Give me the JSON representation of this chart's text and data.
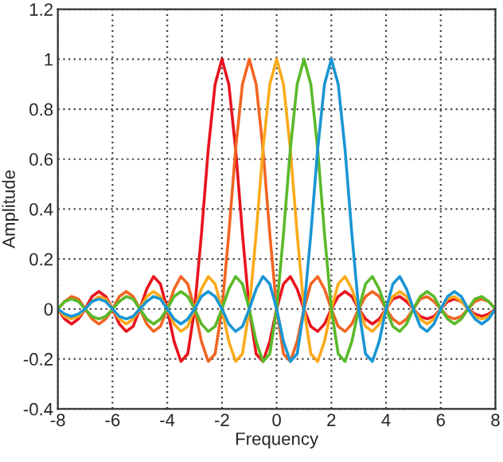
{
  "chart_data": {
    "type": "line",
    "xlabel": "Frequency",
    "ylabel": "Amplitude",
    "x": [
      -8,
      -7.75,
      -7.5,
      -7.25,
      -7,
      -6.75,
      -6.5,
      -6.25,
      -6,
      -5.75,
      -5.5,
      -5.25,
      -5,
      -4.75,
      -4.5,
      -4.25,
      -4,
      -3.75,
      -3.5,
      -3.25,
      -3,
      -2.75,
      -2.5,
      -2.25,
      -2,
      -1.75,
      -1.5,
      -1.25,
      -1,
      -0.75,
      -0.5,
      -0.25,
      0,
      0.25,
      0.5,
      0.75,
      1,
      1.25,
      1.5,
      1.75,
      2,
      2.25,
      2.5,
      2.75,
      3,
      3.25,
      3.5,
      3.75,
      4,
      4.25,
      4.5,
      4.75,
      5,
      5.25,
      5.5,
      5.75,
      6,
      6.25,
      6.5,
      6.75,
      7,
      7.25,
      7.5,
      7.75,
      8
    ],
    "series": [
      {
        "color": "#e8141e",
        "values": [
          0,
          -0.04,
          -0.06,
          -0.04,
          0,
          0.05,
          0.07,
          0.05,
          0,
          -0.06,
          -0.09,
          -0.07,
          0,
          0.08,
          0.13,
          0.1,
          0,
          -0.13,
          -0.21,
          -0.18,
          0,
          0.3,
          0.64,
          0.9,
          1,
          0.9,
          0.64,
          0.3,
          0,
          -0.18,
          -0.21,
          -0.13,
          0,
          0.1,
          0.13,
          0.08,
          0,
          -0.07,
          -0.09,
          -0.06,
          0,
          0.05,
          0.07,
          0.05,
          0,
          -0.04,
          -0.06,
          -0.04,
          0,
          0.04,
          0.05,
          0.03,
          0,
          -0.03,
          -0.04,
          -0.03,
          0,
          0.03,
          0.04,
          0.03,
          0,
          -0.02,
          -0.03,
          -0.02,
          0
        ]
      },
      {
        "color": "#f26522",
        "values": [
          0,
          0.03,
          0.05,
          0.04,
          0,
          -0.04,
          -0.06,
          -0.04,
          0,
          0.05,
          0.07,
          0.05,
          0,
          -0.06,
          -0.09,
          -0.07,
          0,
          0.08,
          0.13,
          0.1,
          0,
          -0.13,
          -0.21,
          -0.18,
          0,
          0.3,
          0.64,
          0.9,
          1,
          0.9,
          0.64,
          0.3,
          0,
          -0.18,
          -0.21,
          -0.13,
          0,
          0.1,
          0.13,
          0.08,
          0,
          -0.07,
          -0.09,
          -0.06,
          0,
          0.05,
          0.07,
          0.05,
          0,
          -0.04,
          -0.06,
          -0.04,
          0,
          0.04,
          0.05,
          0.03,
          0,
          -0.03,
          -0.04,
          -0.03,
          0,
          0.03,
          0.04,
          0.03,
          0
        ]
      },
      {
        "color": "#fbaa1a",
        "values": [
          0,
          -0.03,
          -0.04,
          -0.03,
          0,
          0.03,
          0.05,
          0.04,
          0,
          -0.04,
          -0.06,
          -0.04,
          0,
          0.05,
          0.07,
          0.05,
          0,
          -0.06,
          -0.09,
          -0.07,
          0,
          0.08,
          0.13,
          0.1,
          0,
          -0.13,
          -0.21,
          -0.18,
          0,
          0.3,
          0.64,
          0.9,
          1,
          0.9,
          0.64,
          0.3,
          0,
          -0.18,
          -0.21,
          -0.13,
          0,
          0.1,
          0.13,
          0.08,
          0,
          -0.07,
          -0.09,
          -0.06,
          0,
          0.05,
          0.07,
          0.05,
          0,
          -0.04,
          -0.06,
          -0.04,
          0,
          0.04,
          0.05,
          0.03,
          0,
          -0.03,
          -0.04,
          -0.03,
          0
        ]
      },
      {
        "color": "#5ab92a",
        "values": [
          0,
          0.03,
          0.04,
          0.03,
          0,
          -0.03,
          -0.04,
          -0.03,
          0,
          0.03,
          0.05,
          0.04,
          0,
          -0.04,
          -0.06,
          -0.04,
          0,
          0.05,
          0.07,
          0.05,
          0,
          -0.06,
          -0.09,
          -0.07,
          0,
          0.08,
          0.13,
          0.1,
          0,
          -0.13,
          -0.21,
          -0.18,
          0,
          0.3,
          0.64,
          0.9,
          1,
          0.9,
          0.64,
          0.3,
          0,
          -0.18,
          -0.21,
          -0.13,
          0,
          0.1,
          0.13,
          0.08,
          0,
          -0.07,
          -0.09,
          -0.06,
          0,
          0.05,
          0.07,
          0.05,
          0,
          -0.04,
          -0.06,
          -0.04,
          0,
          0.04,
          0.05,
          0.03,
          0
        ]
      },
      {
        "color": "#1a96d4",
        "values": [
          0,
          -0.02,
          -0.03,
          -0.02,
          0,
          0.03,
          0.04,
          0.03,
          0,
          -0.03,
          -0.04,
          -0.03,
          0,
          0.03,
          0.05,
          0.04,
          0,
          -0.04,
          -0.06,
          -0.04,
          0,
          0.05,
          0.07,
          0.05,
          0,
          -0.06,
          -0.09,
          -0.07,
          0,
          0.08,
          0.13,
          0.1,
          0,
          -0.13,
          -0.21,
          -0.18,
          0,
          0.3,
          0.64,
          0.9,
          1,
          0.9,
          0.64,
          0.3,
          0,
          -0.18,
          -0.21,
          -0.13,
          0,
          0.1,
          0.13,
          0.08,
          0,
          -0.07,
          -0.09,
          -0.06,
          0,
          0.05,
          0.07,
          0.05,
          0,
          -0.04,
          -0.06,
          -0.04,
          0
        ]
      }
    ],
    "xlim": [
      -8,
      8
    ],
    "xticks": [
      -8,
      -6,
      -4,
      -2,
      0,
      2,
      4,
      6,
      8
    ],
    "ylim": [
      -0.4,
      1.2
    ],
    "yticks": [
      -0.4,
      -0.2,
      0,
      0.2,
      0.4,
      0.6,
      0.8,
      1,
      1.2
    ],
    "grid": true,
    "legend": false
  }
}
